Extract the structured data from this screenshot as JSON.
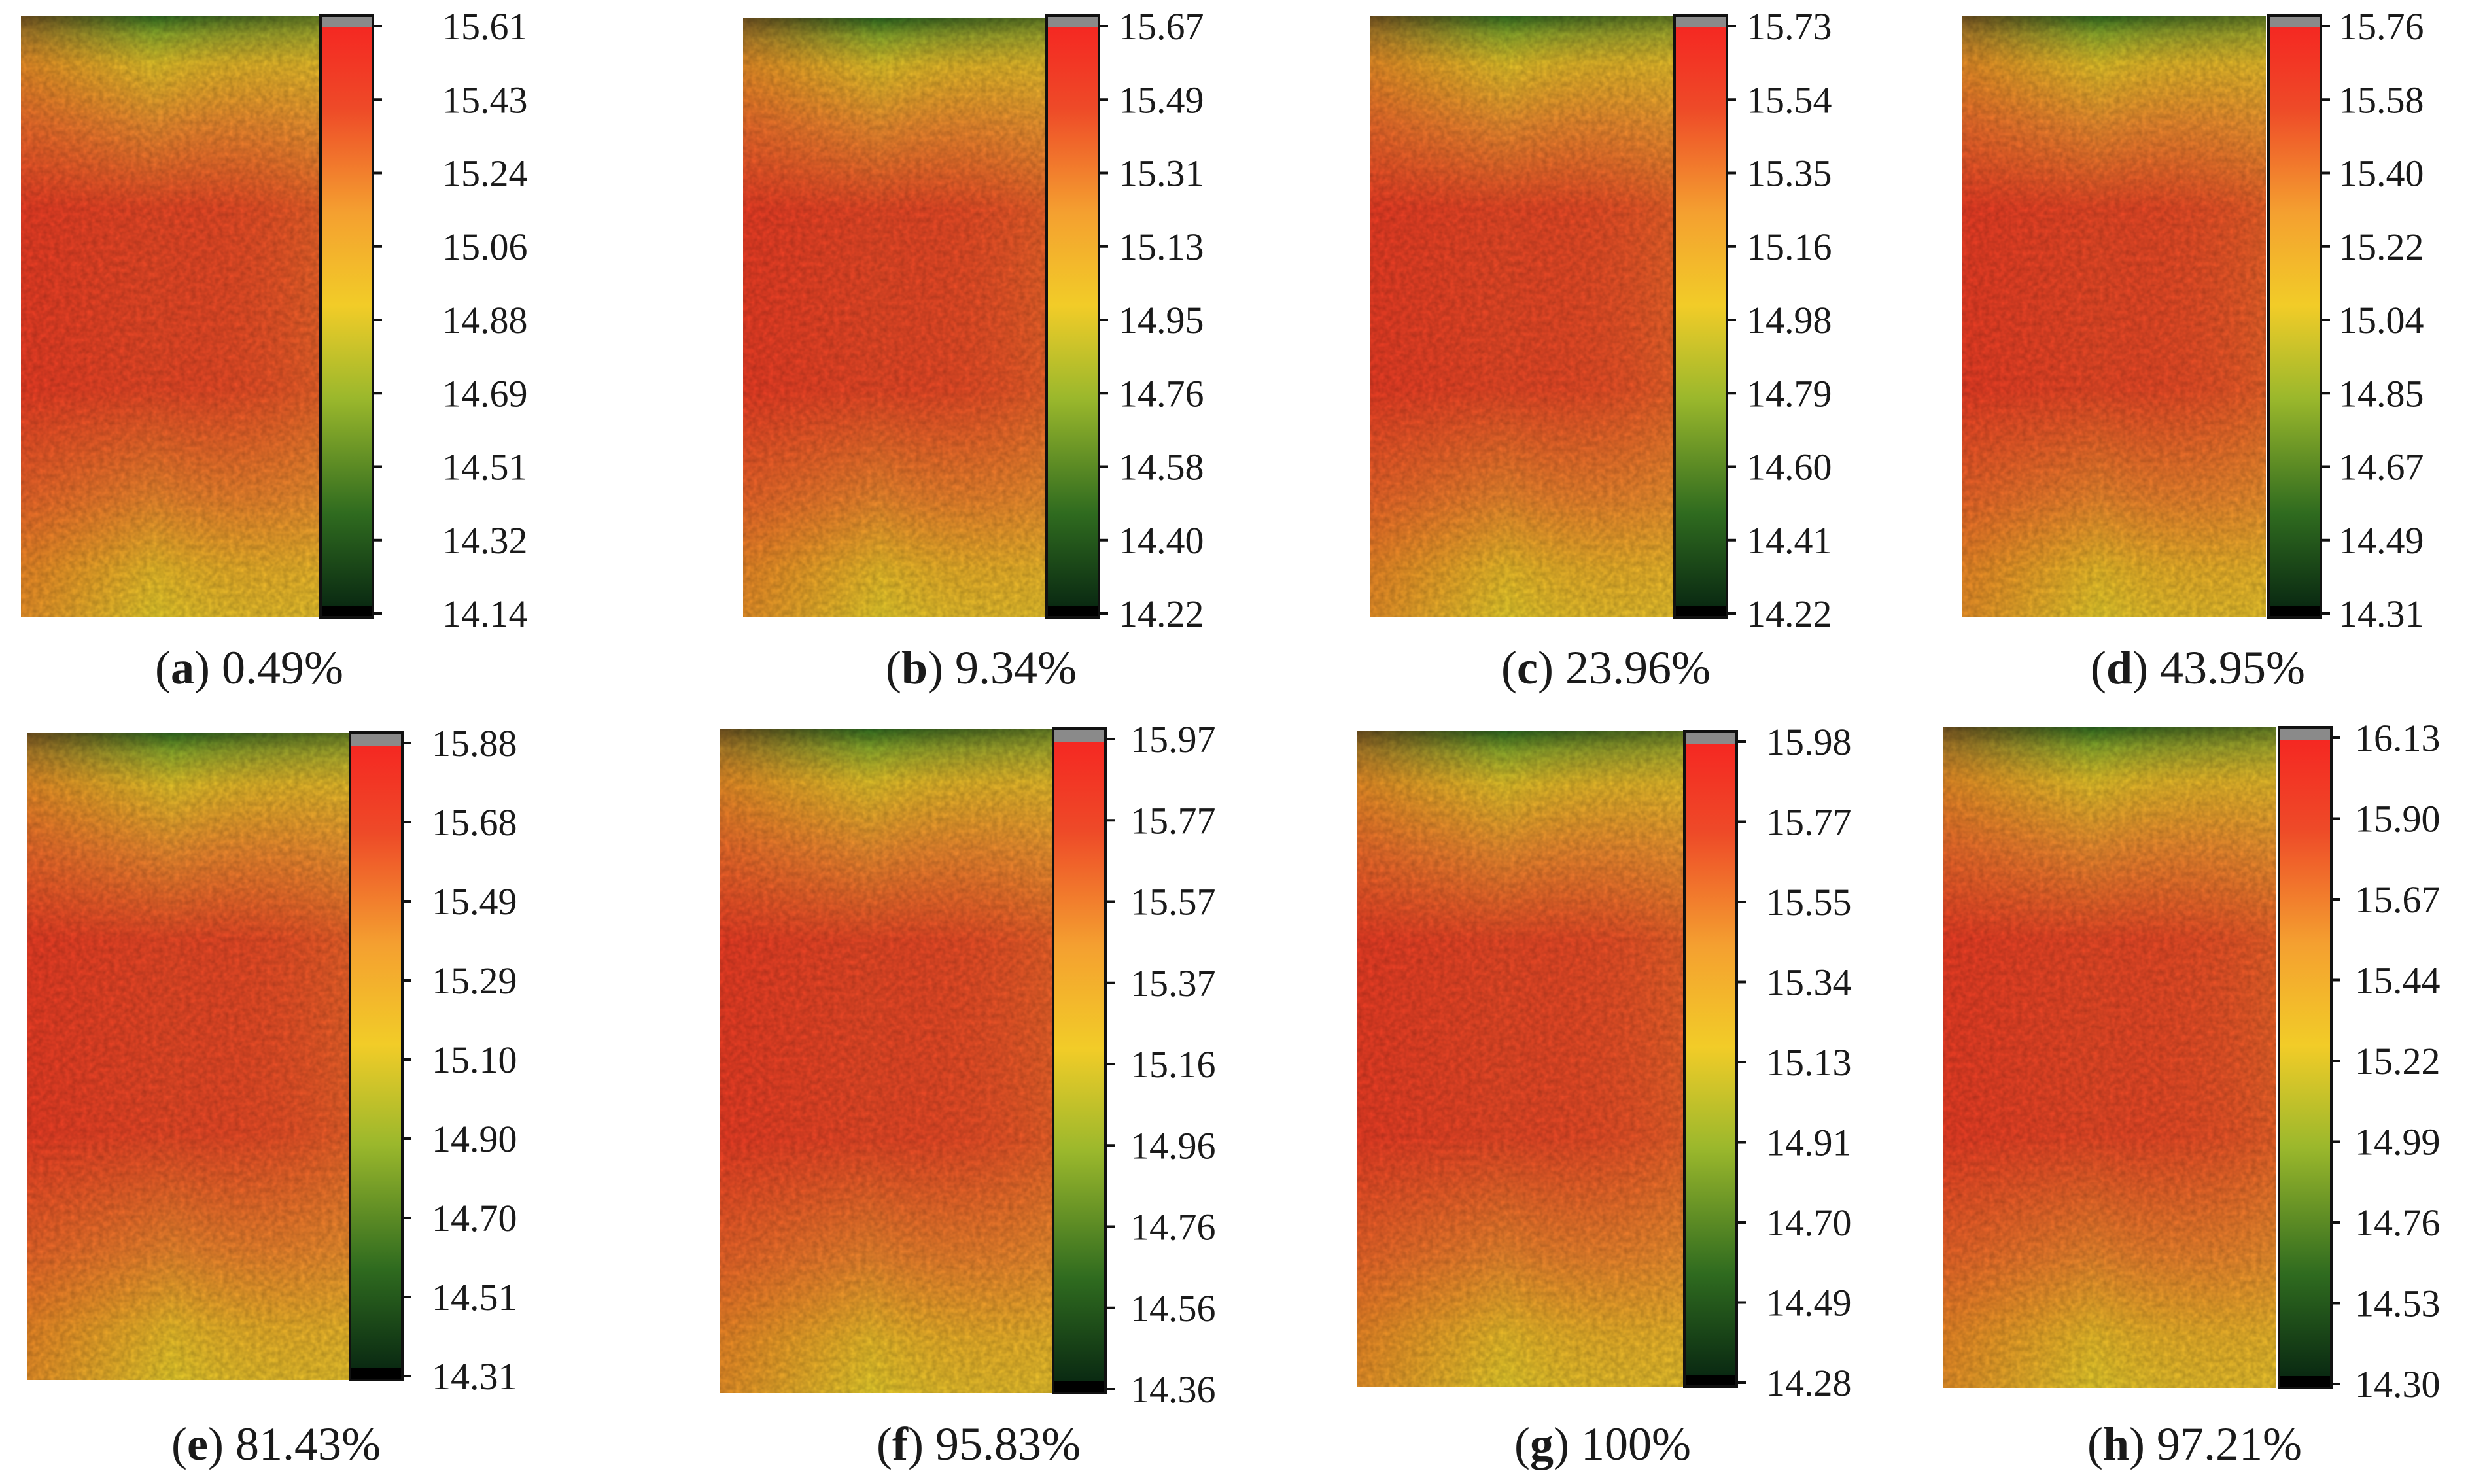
{
  "chart_data": [
    {
      "type": "heatmap",
      "panel_label": "a",
      "caption_value": "0.49%",
      "ticks": [
        "15.61",
        "15.43",
        "15.24",
        "15.06",
        "14.88",
        "14.69",
        "14.51",
        "14.32",
        "14.14"
      ],
      "vmin": 14.14,
      "vmax": 15.61
    },
    {
      "type": "heatmap",
      "panel_label": "b",
      "caption_value": "9.34%",
      "ticks": [
        "15.67",
        "15.49",
        "15.31",
        "15.13",
        "14.95",
        "14.76",
        "14.58",
        "14.40",
        "14.22"
      ],
      "vmin": 14.22,
      "vmax": 15.67
    },
    {
      "type": "heatmap",
      "panel_label": "c",
      "caption_value": "23.96%",
      "ticks": [
        "15.73",
        "15.54",
        "15.35",
        "15.16",
        "14.98",
        "14.79",
        "14.60",
        "14.41",
        "14.22"
      ],
      "vmin": 14.22,
      "vmax": 15.73
    },
    {
      "type": "heatmap",
      "panel_label": "d",
      "caption_value": "43.95%",
      "ticks": [
        "15.76",
        "15.58",
        "15.40",
        "15.22",
        "15.04",
        "14.85",
        "14.67",
        "14.49",
        "14.31"
      ],
      "vmin": 14.31,
      "vmax": 15.76
    },
    {
      "type": "heatmap",
      "panel_label": "e",
      "caption_value": "81.43%",
      "ticks": [
        "15.88",
        "15.68",
        "15.49",
        "15.29",
        "15.10",
        "14.90",
        "14.70",
        "14.51",
        "14.31"
      ],
      "vmin": 14.31,
      "vmax": 15.88
    },
    {
      "type": "heatmap",
      "panel_label": "f",
      "caption_value": "95.83%",
      "ticks": [
        "15.97",
        "15.77",
        "15.57",
        "15.37",
        "15.16",
        "14.96",
        "14.76",
        "14.56",
        "14.36"
      ],
      "vmin": 14.36,
      "vmax": 15.97
    },
    {
      "type": "heatmap",
      "panel_label": "g",
      "caption_value": "100%",
      "ticks": [
        "15.98",
        "15.77",
        "15.55",
        "15.34",
        "15.13",
        "14.91",
        "14.70",
        "14.49",
        "14.28"
      ],
      "vmin": 14.28,
      "vmax": 15.98
    },
    {
      "type": "heatmap",
      "panel_label": "h",
      "caption_value": "97.21%",
      "ticks": [
        "16.13",
        "15.90",
        "15.67",
        "15.44",
        "15.22",
        "14.99",
        "14.76",
        "14.53",
        "14.30"
      ],
      "vmin": 14.3,
      "vmax": 16.13
    }
  ],
  "colormap": {
    "stops": [
      "#0a2a12",
      "#2f6b1f",
      "#9bb82c",
      "#f2cc28",
      "#f4a030",
      "#ee4a28",
      "#f52822"
    ],
    "over_color": "#8a8a8a",
    "under_color": "#000000"
  }
}
